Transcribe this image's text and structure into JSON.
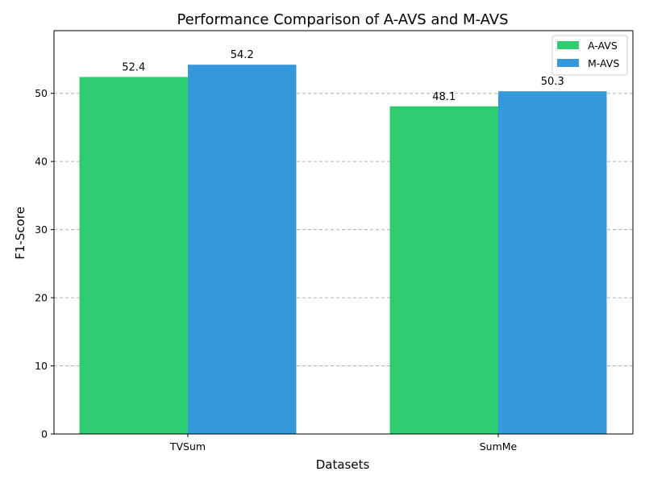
{
  "chart_data": {
    "type": "bar",
    "title": "Performance Comparison of A-AVS and M-AVS",
    "xlabel": "Datasets",
    "ylabel": "F1-Score",
    "categories": [
      "TVSum",
      "SumMe"
    ],
    "series": [
      {
        "name": "A-AVS",
        "values": [
          52.4,
          48.1
        ],
        "color": "#2ecc71"
      },
      {
        "name": "M-AVS",
        "values": [
          54.2,
          50.3
        ],
        "color": "#3498db"
      }
    ],
    "ylim": [
      0,
      59.2
    ],
    "yticks": [
      0,
      10,
      20,
      30,
      40,
      50
    ],
    "grid": {
      "axis": "y",
      "style": "dashed",
      "color": "#b0b0b0"
    },
    "legend": "top-right",
    "data_labels": [
      "52.4",
      "54.2",
      "48.1",
      "50.3"
    ],
    "data_labels_shown": true
  }
}
